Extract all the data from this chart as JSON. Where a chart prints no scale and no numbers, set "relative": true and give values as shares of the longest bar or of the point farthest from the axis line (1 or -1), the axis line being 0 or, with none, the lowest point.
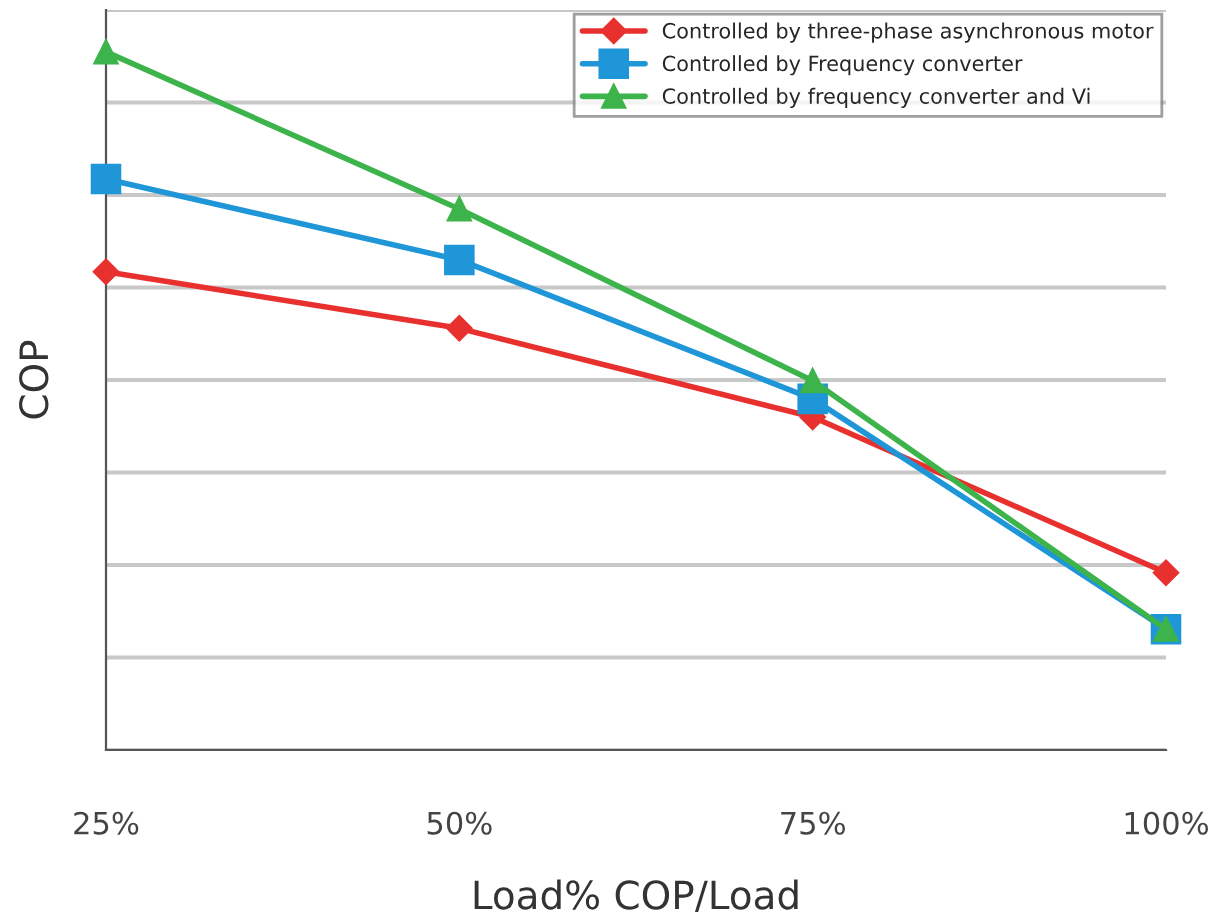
{
  "chart_data": {
    "type": "line",
    "xlabel": "Load% COP/Load",
    "ylabel": "COP",
    "relative": true,
    "grid": "y",
    "legend": "top right",
    "categories": [
      "25%",
      "50%",
      "75%",
      "100%"
    ],
    "series": [
      {
        "name": "Controlled by three-phase asynchronous motor",
        "color": "#e8312f",
        "marker": "diamond",
        "values": [
          0.685,
          0.604,
          0.477,
          0.254
        ]
      },
      {
        "name": "Controlled by Frequency converter",
        "color": "#1e96d8",
        "marker": "square",
        "values": [
          0.818,
          0.702,
          0.503,
          0.173
        ]
      },
      {
        "name": "Controlled by frequency converter and Vi",
        "color": "#3cb44b",
        "marker": "triangle",
        "values": [
          1.0,
          0.775,
          0.529,
          0.173
        ]
      }
    ]
  }
}
